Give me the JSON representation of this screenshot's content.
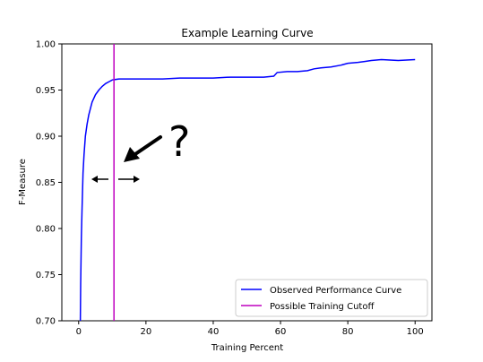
{
  "chart_data": {
    "type": "line",
    "title": "Example Learning Curve",
    "xlabel": "Training Percent",
    "ylabel": "F-Measure",
    "xlim": [
      -5,
      105
    ],
    "ylim": [
      0.7,
      1.0
    ],
    "xticks": [
      0,
      20,
      40,
      60,
      80,
      100
    ],
    "yticks": [
      0.7,
      0.75,
      0.8,
      0.85,
      0.9,
      0.95,
      1.0
    ],
    "xtick_labels": [
      "0",
      "20",
      "40",
      "60",
      "80",
      "100"
    ],
    "ytick_labels": [
      "0.70",
      "0.75",
      "0.80",
      "0.85",
      "0.90",
      "0.95",
      "1.00"
    ],
    "grid": false,
    "legend_position": "lower-right",
    "series": [
      {
        "name": "Observed Performance Curve",
        "color": "#0000ff",
        "x": [
          0.5,
          0.6,
          0.8,
          1.0,
          1.3,
          1.6,
          2.0,
          2.5,
          3.0,
          3.5,
          4.0,
          5.0,
          6.0,
          7.0,
          8.0,
          9.0,
          10.0,
          12.0,
          15.0,
          20.0,
          25.0,
          30.0,
          35.0,
          40.0,
          45.0,
          50.0,
          55.0,
          58.0,
          59.0,
          62.0,
          65.0,
          68.0,
          70.0,
          72.0,
          75.0,
          78.0,
          80.0,
          83.0,
          85.0,
          87.0,
          90.0,
          95.0,
          100.0
        ],
        "y": [
          0.7,
          0.74,
          0.79,
          0.82,
          0.86,
          0.88,
          0.9,
          0.913,
          0.923,
          0.93,
          0.937,
          0.945,
          0.95,
          0.954,
          0.957,
          0.959,
          0.961,
          0.962,
          0.962,
          0.962,
          0.962,
          0.963,
          0.963,
          0.963,
          0.964,
          0.964,
          0.964,
          0.965,
          0.969,
          0.97,
          0.97,
          0.971,
          0.973,
          0.974,
          0.975,
          0.977,
          0.979,
          0.98,
          0.981,
          0.982,
          0.983,
          0.982,
          0.983
        ]
      },
      {
        "name": "Possible Training Cutoff",
        "color": "#bf00bf",
        "vertical_line_x": 10.5
      }
    ],
    "annotations": [
      {
        "text": "?",
        "type": "question-mark"
      },
      {
        "type": "arrow",
        "description": "diagonal arrow pointing at cutoff line"
      },
      {
        "type": "double-arrow",
        "description": "left-right arrows around cutoff"
      }
    ]
  }
}
